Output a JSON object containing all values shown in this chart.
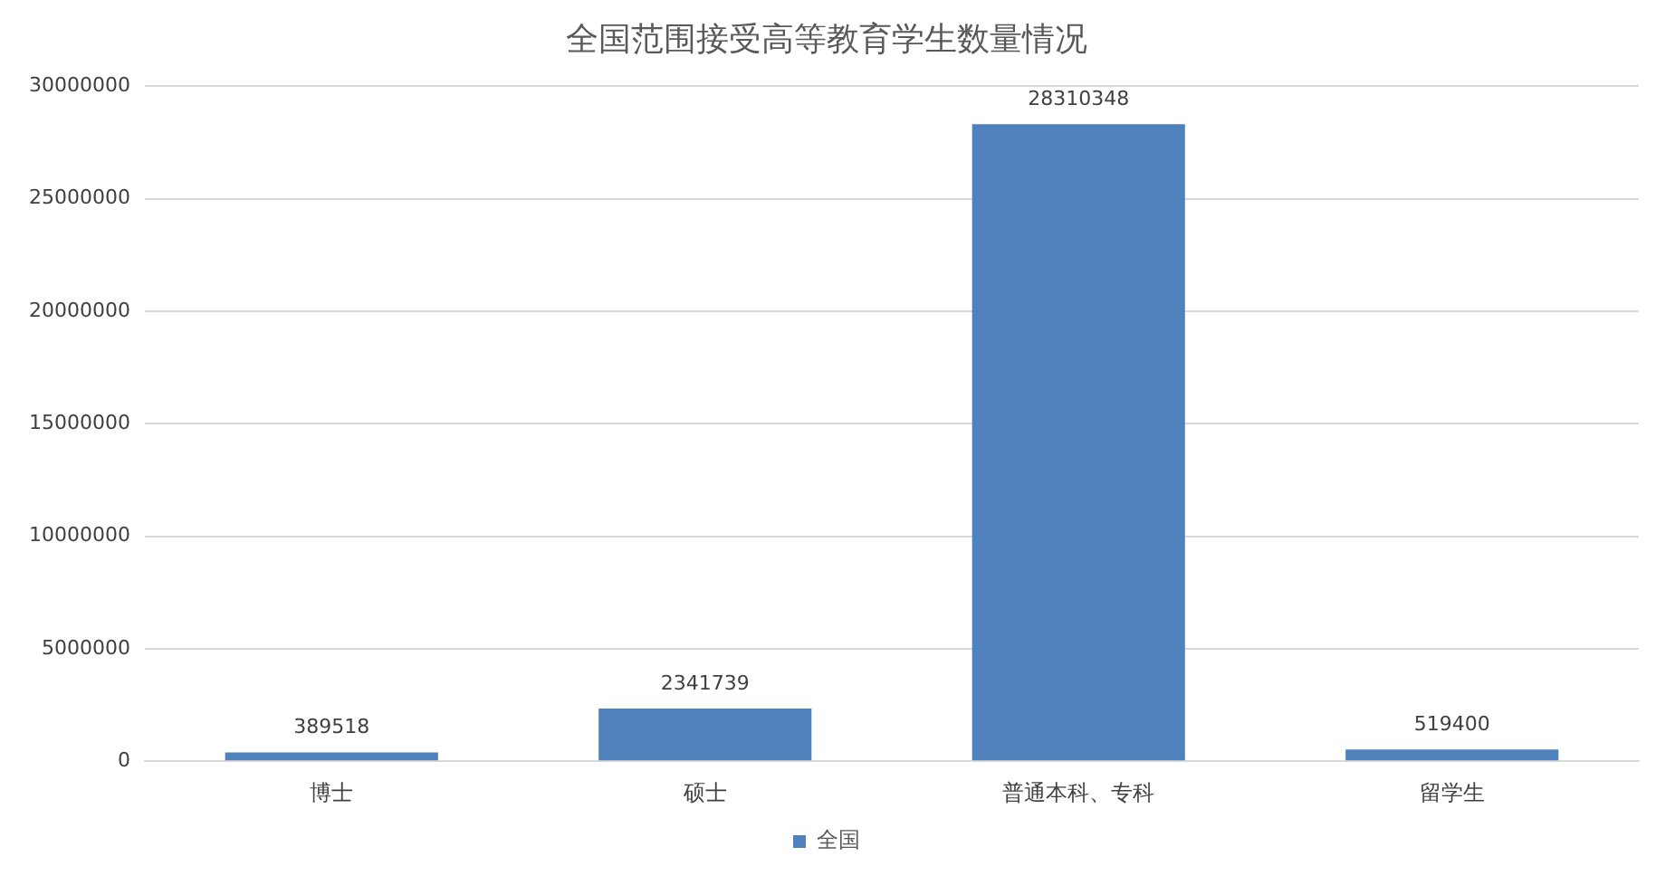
{
  "chart_data": {
    "type": "bar",
    "title": "全国范围接受高等教育学生数量情况",
    "categories": [
      "博士",
      "硕士",
      "普通本科、专科",
      "留学生"
    ],
    "series": [
      {
        "name": "全国",
        "color": "#4f81bd",
        "values": [
          389518,
          2341739,
          28310348,
          519400
        ]
      }
    ],
    "ylim": [
      0,
      30000000
    ],
    "yticks": [
      0,
      5000000,
      10000000,
      15000000,
      20000000,
      25000000,
      30000000
    ],
    "grid": "y",
    "legend": "bottom",
    "data_labels": true
  }
}
